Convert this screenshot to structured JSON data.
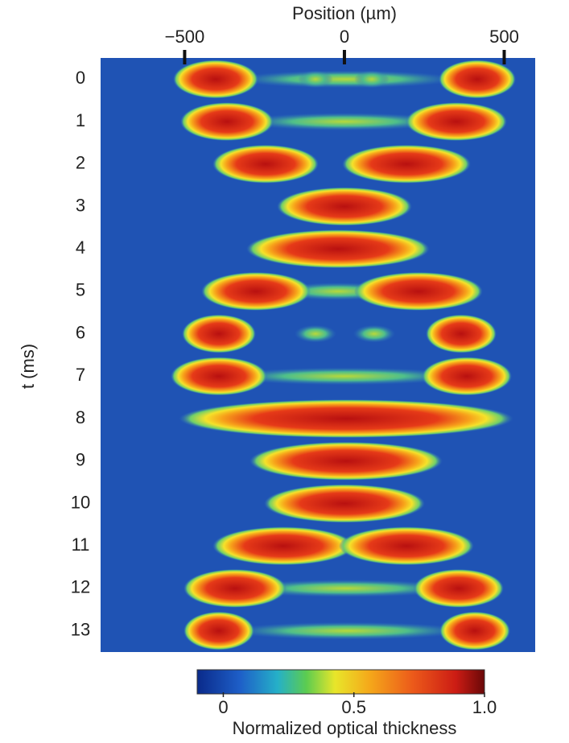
{
  "chart_data": {
    "type": "image",
    "x_label": "Position (µm)",
    "y_label": "t (ms)",
    "xlim": [
      -763,
      597
    ],
    "xticks": [
      {
        "value": -500,
        "label": "−500"
      },
      0,
      500
    ],
    "categories": [
      "0",
      "1",
      "2",
      "3",
      "4",
      "5",
      "6",
      "7",
      "8",
      "9",
      "10",
      "11",
      "12",
      "13"
    ],
    "colorbar": {
      "label": "Normalized optical thickness",
      "lim": [
        -0.1,
        1.0
      ],
      "ticks": [
        0,
        0.5,
        {
          "value": 1.0,
          "label": "1.0"
        }
      ]
    }
  }
}
